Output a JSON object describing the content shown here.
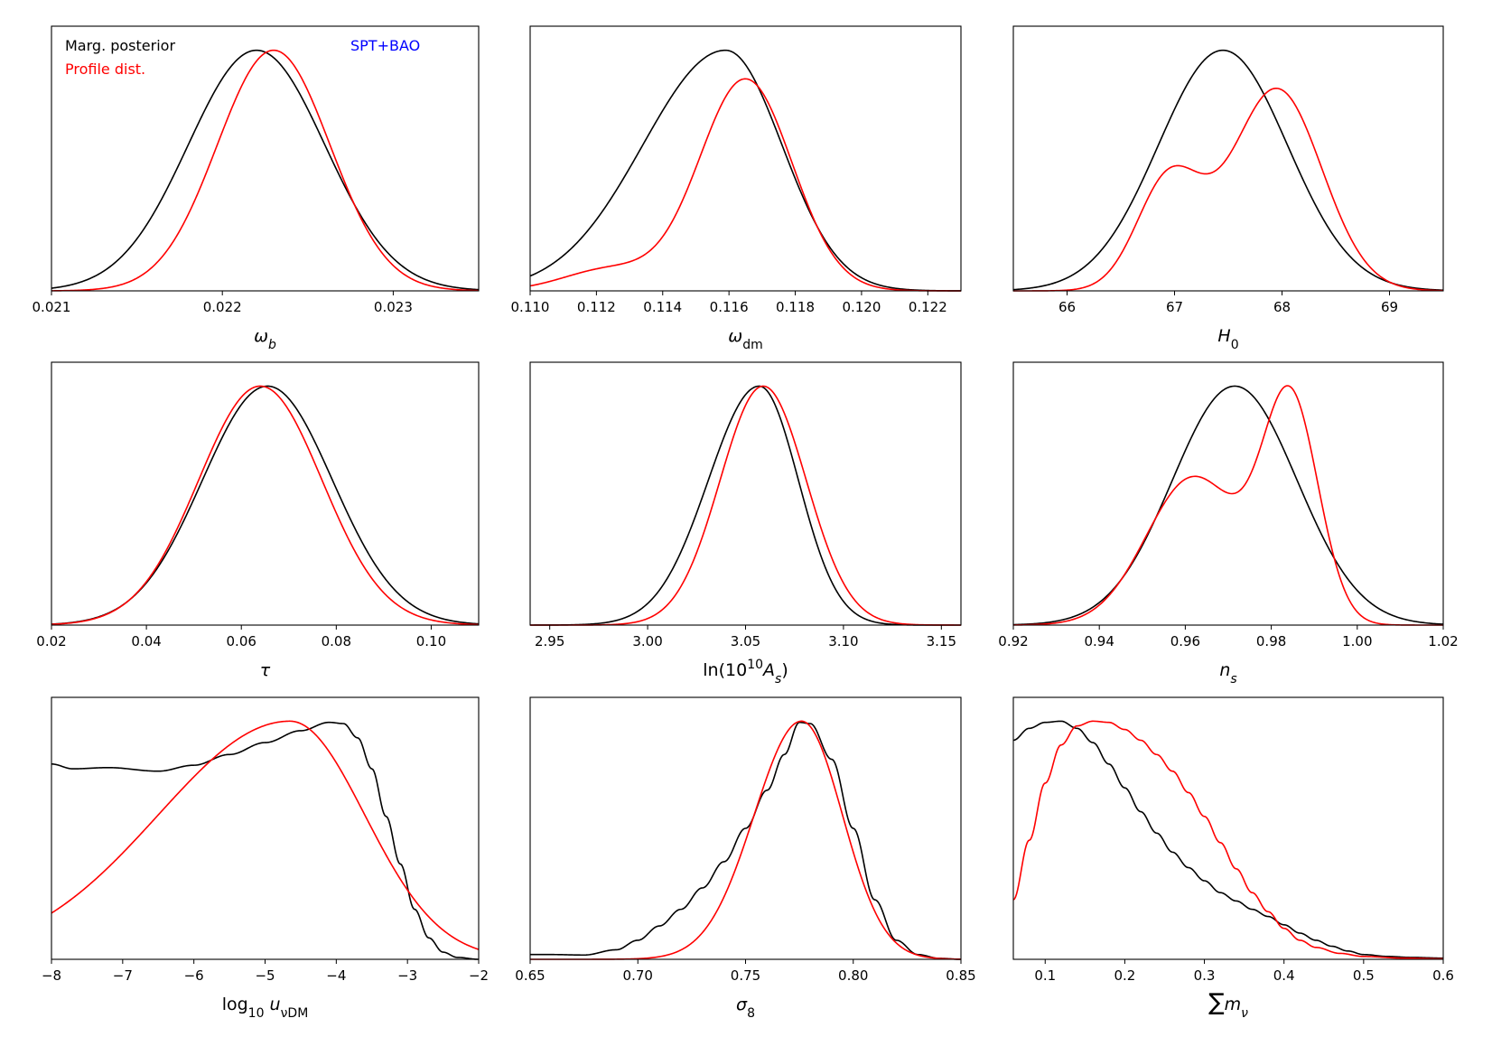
{
  "legend": {
    "marg_label": "Marg. posterior",
    "profile_label": "Profile dist.",
    "dataset_label": "SPT+BAO",
    "marg_color": "#000000",
    "profile_color": "#ff0000",
    "dataset_color": "#0000ff"
  },
  "chart_data": [
    {
      "type": "line",
      "xlabel_parts": [
        {
          "t": "ω",
          "i": true
        },
        {
          "t": "b",
          "sub": true,
          "i": true
        }
      ],
      "xlim": [
        0.021,
        0.0235
      ],
      "ylim": [
        0,
        1.1
      ],
      "xticks": [
        0.021,
        0.022,
        0.023
      ],
      "xtick_labels": [
        "0.021",
        "0.022",
        "0.023"
      ],
      "series": [
        {
          "name": "Marg. posterior",
          "color": "#000000",
          "model": "gauss",
          "params": [
            [
              1.0,
              0.0222,
              0.0004
            ]
          ]
        },
        {
          "name": "Profile dist.",
          "color": "#ff0000",
          "model": "gauss",
          "params": [
            [
              1.0,
              0.0223,
              0.00033
            ]
          ]
        }
      ]
    },
    {
      "type": "line",
      "xlabel_parts": [
        {
          "t": "ω",
          "i": true
        },
        {
          "t": "dm",
          "sub": true
        }
      ],
      "xlim": [
        0.11,
        0.123
      ],
      "ylim": [
        0,
        1.1
      ],
      "xticks": [
        0.11,
        0.112,
        0.114,
        0.116,
        0.118,
        0.12,
        0.122
      ],
      "xtick_labels": [
        "0.110",
        "0.112",
        "0.114",
        "0.116",
        "0.118",
        "0.120",
        "0.122"
      ],
      "series": [
        {
          "name": "Marg. posterior",
          "color": "#000000",
          "model": "asym",
          "params": [
            1.0,
            0.1159,
            0.0025,
            0.0017
          ]
        },
        {
          "name": "Profile dist.",
          "color": "#ff0000",
          "model": "gauss",
          "params": [
            [
              0.88,
              0.1165,
              0.0014
            ],
            [
              0.09,
              0.1124,
              0.0014
            ]
          ]
        }
      ]
    },
    {
      "type": "line",
      "xlabel_parts": [
        {
          "t": "H",
          "i": true
        },
        {
          "t": "0",
          "sub": true
        }
      ],
      "xlim": [
        65.5,
        69.5
      ],
      "ylim": [
        0,
        1.1
      ],
      "xticks": [
        66,
        67,
        68,
        69
      ],
      "xtick_labels": [
        "66",
        "67",
        "68",
        "69"
      ],
      "series": [
        {
          "name": "Marg. posterior",
          "color": "#000000",
          "model": "gauss",
          "params": [
            [
              1.0,
              67.45,
              0.6
            ]
          ]
        },
        {
          "name": "Profile dist.",
          "color": "#ff0000",
          "model": "gauss",
          "params": [
            [
              0.84,
              67.95,
              0.42
            ],
            [
              0.46,
              66.95,
              0.3
            ]
          ]
        }
      ]
    },
    {
      "type": "line",
      "xlabel_parts": [
        {
          "t": "τ",
          "i": true
        }
      ],
      "xlim": [
        0.02,
        0.11
      ],
      "ylim": [
        0,
        1.1
      ],
      "xticks": [
        0.02,
        0.04,
        0.06,
        0.08,
        0.1
      ],
      "xtick_labels": [
        "0.02",
        "0.04",
        "0.06",
        "0.08",
        "0.10"
      ],
      "series": [
        {
          "name": "Marg. posterior",
          "color": "#000000",
          "model": "gauss",
          "params": [
            [
              1.0,
              0.0655,
              0.0137
            ]
          ]
        },
        {
          "name": "Profile dist.",
          "color": "#ff0000",
          "model": "gauss",
          "params": [
            [
              1.0,
              0.064,
              0.013
            ]
          ]
        }
      ]
    },
    {
      "type": "line",
      "xlabel_parts": [
        {
          "t": "ln(10"
        },
        {
          "t": "10",
          "sup": true
        },
        {
          "t": "A",
          "i": true
        },
        {
          "t": "s",
          "sub": true,
          "i": true
        },
        {
          "t": ")"
        }
      ],
      "xlim": [
        2.94,
        3.16
      ],
      "ylim": [
        0,
        1.1
      ],
      "xticks": [
        2.95,
        3.0,
        3.05,
        3.1,
        3.15
      ],
      "xtick_labels": [
        "2.95",
        "3.00",
        "3.05",
        "3.10",
        "3.15"
      ],
      "series": [
        {
          "name": "Marg. posterior",
          "color": "#000000",
          "model": "asym",
          "params": [
            1.0,
            3.057,
            0.026,
            0.02
          ]
        },
        {
          "name": "Profile dist.",
          "color": "#ff0000",
          "model": "gauss",
          "params": [
            [
              1.0,
              3.059,
              0.022
            ]
          ]
        }
      ]
    },
    {
      "type": "line",
      "xlabel_parts": [
        {
          "t": "n",
          "i": true
        },
        {
          "t": "s",
          "sub": true,
          "i": true
        }
      ],
      "xlim": [
        0.92,
        1.02
      ],
      "ylim": [
        0,
        1.1
      ],
      "xticks": [
        0.92,
        0.94,
        0.96,
        0.98,
        1.0,
        1.02
      ],
      "xtick_labels": [
        "0.92",
        "0.94",
        "0.96",
        "0.98",
        "1.00",
        "1.02"
      ],
      "series": [
        {
          "name": "Marg. posterior",
          "color": "#000000",
          "model": "gauss",
          "params": [
            [
              1.0,
              0.9715,
              0.0145
            ]
          ]
        },
        {
          "name": "Profile dist.",
          "color": "#ff0000",
          "model": "gauss",
          "params": [
            [
              0.92,
              0.9845,
              0.0065
            ],
            [
              0.62,
              0.962,
              0.011
            ]
          ]
        }
      ]
    },
    {
      "type": "line",
      "xlabel_parts": [
        {
          "t": "log"
        },
        {
          "t": "10",
          "sub": true
        },
        {
          "t": " "
        },
        {
          "t": "u",
          "i": true
        },
        {
          "t": "νDM",
          "sub": true
        }
      ],
      "xlim": [
        -8,
        -2
      ],
      "ylim": [
        0,
        1.1
      ],
      "xticks": [
        -8,
        -7,
        -6,
        -5,
        -4,
        -3,
        -2
      ],
      "xtick_labels": [
        "−8",
        "−7",
        "−6",
        "−5",
        "−4",
        "−3",
        "−2"
      ],
      "series": [
        {
          "name": "Marg. posterior",
          "color": "#000000",
          "model": "points",
          "points": [
            [
              -8.0,
              0.82
            ],
            [
              -7.7,
              0.8
            ],
            [
              -7.2,
              0.805
            ],
            [
              -6.5,
              0.79
            ],
            [
              -6.0,
              0.815
            ],
            [
              -5.5,
              0.86
            ],
            [
              -5.0,
              0.91
            ],
            [
              -4.5,
              0.96
            ],
            [
              -4.1,
              0.995
            ],
            [
              -3.9,
              0.99
            ],
            [
              -3.7,
              0.93
            ],
            [
              -3.5,
              0.8
            ],
            [
              -3.3,
              0.6
            ],
            [
              -3.1,
              0.4
            ],
            [
              -2.9,
              0.21
            ],
            [
              -2.7,
              0.09
            ],
            [
              -2.5,
              0.03
            ],
            [
              -2.3,
              0.008
            ],
            [
              -2.0,
              0.0
            ]
          ]
        },
        {
          "name": "Profile dist.",
          "color": "#ff0000",
          "model": "asym",
          "params": [
            1.0,
            -4.65,
            1.85,
            1.05
          ]
        }
      ]
    },
    {
      "type": "line",
      "xlabel_parts": [
        {
          "t": "σ",
          "i": true
        },
        {
          "t": "8",
          "sub": true
        }
      ],
      "xlim": [
        0.65,
        0.85
      ],
      "ylim": [
        0,
        1.1
      ],
      "xticks": [
        0.65,
        0.7,
        0.75,
        0.8,
        0.85
      ],
      "xtick_labels": [
        "0.65",
        "0.70",
        "0.75",
        "0.80",
        "0.85"
      ],
      "series": [
        {
          "name": "Marg. posterior",
          "color": "#000000",
          "model": "points",
          "points": [
            [
              0.65,
              0.02
            ],
            [
              0.66,
              0.02
            ],
            [
              0.675,
              0.018
            ],
            [
              0.69,
              0.04
            ],
            [
              0.7,
              0.08
            ],
            [
              0.71,
              0.14
            ],
            [
              0.72,
              0.21
            ],
            [
              0.73,
              0.3
            ],
            [
              0.74,
              0.41
            ],
            [
              0.75,
              0.55
            ],
            [
              0.76,
              0.71
            ],
            [
              0.768,
              0.86
            ],
            [
              0.775,
              0.995
            ],
            [
              0.78,
              0.99
            ],
            [
              0.79,
              0.84
            ],
            [
              0.8,
              0.55
            ],
            [
              0.81,
              0.25
            ],
            [
              0.82,
              0.08
            ],
            [
              0.83,
              0.02
            ],
            [
              0.84,
              0.004
            ],
            [
              0.85,
              0.0
            ]
          ]
        },
        {
          "name": "Profile dist.",
          "color": "#ff0000",
          "model": "asym",
          "params": [
            1.0,
            0.776,
            0.022,
            0.019
          ]
        }
      ]
    },
    {
      "type": "line",
      "xlabel_parts": [
        {
          "t": "∑",
          "big": true
        },
        {
          "t": "m",
          "i": true
        },
        {
          "t": "ν",
          "sub": true,
          "i": true
        }
      ],
      "xlim": [
        0.06,
        0.6
      ],
      "ylim": [
        0,
        1.1
      ],
      "xticks": [
        0.1,
        0.2,
        0.3,
        0.4,
        0.5,
        0.6
      ],
      "xtick_labels": [
        "0.1",
        "0.2",
        "0.3",
        "0.4",
        "0.5",
        "0.6"
      ],
      "series": [
        {
          "name": "Marg. posterior",
          "color": "#000000",
          "model": "points",
          "points": [
            [
              0.06,
              0.92
            ],
            [
              0.08,
              0.97
            ],
            [
              0.1,
              0.995
            ],
            [
              0.12,
              1.0
            ],
            [
              0.14,
              0.97
            ],
            [
              0.16,
              0.91
            ],
            [
              0.18,
              0.82
            ],
            [
              0.2,
              0.72
            ],
            [
              0.22,
              0.62
            ],
            [
              0.24,
              0.53
            ],
            [
              0.26,
              0.45
            ],
            [
              0.28,
              0.385
            ],
            [
              0.3,
              0.33
            ],
            [
              0.32,
              0.28
            ],
            [
              0.34,
              0.245
            ],
            [
              0.36,
              0.21
            ],
            [
              0.38,
              0.18
            ],
            [
              0.4,
              0.145
            ],
            [
              0.42,
              0.11
            ],
            [
              0.44,
              0.08
            ],
            [
              0.46,
              0.055
            ],
            [
              0.48,
              0.035
            ],
            [
              0.5,
              0.02
            ],
            [
              0.53,
              0.012
            ],
            [
              0.56,
              0.008
            ],
            [
              0.6,
              0.005
            ]
          ]
        },
        {
          "name": "Profile dist.",
          "color": "#ff0000",
          "model": "points",
          "points": [
            [
              0.06,
              0.25
            ],
            [
              0.08,
              0.5
            ],
            [
              0.1,
              0.74
            ],
            [
              0.12,
              0.9
            ],
            [
              0.14,
              0.98
            ],
            [
              0.16,
              1.0
            ],
            [
              0.18,
              0.995
            ],
            [
              0.2,
              0.965
            ],
            [
              0.22,
              0.92
            ],
            [
              0.24,
              0.86
            ],
            [
              0.26,
              0.79
            ],
            [
              0.28,
              0.7
            ],
            [
              0.3,
              0.6
            ],
            [
              0.32,
              0.49
            ],
            [
              0.34,
              0.38
            ],
            [
              0.36,
              0.28
            ],
            [
              0.38,
              0.2
            ],
            [
              0.4,
              0.13
            ],
            [
              0.42,
              0.08
            ],
            [
              0.44,
              0.05
            ],
            [
              0.47,
              0.025
            ],
            [
              0.5,
              0.012
            ],
            [
              0.55,
              0.005
            ],
            [
              0.6,
              0.002
            ]
          ]
        }
      ]
    }
  ]
}
